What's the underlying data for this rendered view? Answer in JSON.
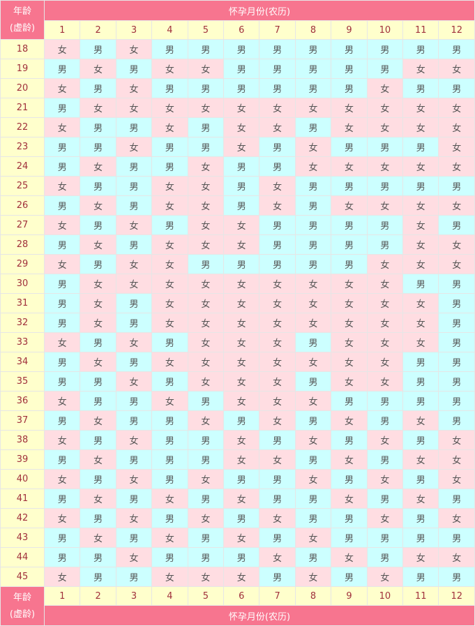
{
  "header": {
    "age_label": "年龄",
    "age_sub": "(虚龄)",
    "month_title": "怀孕月份(农历)",
    "months": [
      "1",
      "2",
      "3",
      "4",
      "5",
      "6",
      "7",
      "8",
      "9",
      "10",
      "11",
      "12"
    ]
  },
  "legend": {
    "boy": "男",
    "girl": "女"
  },
  "colors": {
    "header": "#f7758f",
    "label_bg": "#ffffcc",
    "boy_bg": "#ccffff",
    "girl_bg": "#ffdde2",
    "label_text": "#a0303c"
  },
  "rows": [
    {
      "age": "18",
      "cells": [
        "女",
        "男",
        "女",
        "男",
        "男",
        "男",
        "男",
        "男",
        "男",
        "男",
        "男",
        "男"
      ]
    },
    {
      "age": "19",
      "cells": [
        "男",
        "女",
        "男",
        "女",
        "女",
        "男",
        "男",
        "男",
        "男",
        "男",
        "女",
        "女"
      ]
    },
    {
      "age": "20",
      "cells": [
        "女",
        "男",
        "女",
        "男",
        "男",
        "男",
        "男",
        "男",
        "男",
        "女",
        "男",
        "男"
      ]
    },
    {
      "age": "21",
      "cells": [
        "男",
        "女",
        "女",
        "女",
        "女",
        "女",
        "女",
        "女",
        "女",
        "女",
        "女",
        "女"
      ]
    },
    {
      "age": "22",
      "cells": [
        "女",
        "男",
        "男",
        "女",
        "男",
        "女",
        "女",
        "男",
        "女",
        "女",
        "女",
        "女"
      ]
    },
    {
      "age": "23",
      "cells": [
        "男",
        "男",
        "女",
        "男",
        "男",
        "女",
        "男",
        "女",
        "男",
        "男",
        "男",
        "女"
      ]
    },
    {
      "age": "24",
      "cells": [
        "男",
        "女",
        "男",
        "男",
        "女",
        "男",
        "男",
        "女",
        "女",
        "女",
        "女",
        "女"
      ]
    },
    {
      "age": "25",
      "cells": [
        "女",
        "男",
        "男",
        "女",
        "女",
        "男",
        "女",
        "男",
        "男",
        "男",
        "男",
        "男"
      ]
    },
    {
      "age": "26",
      "cells": [
        "男",
        "女",
        "男",
        "女",
        "女",
        "男",
        "女",
        "男",
        "女",
        "女",
        "女",
        "女"
      ]
    },
    {
      "age": "27",
      "cells": [
        "女",
        "男",
        "女",
        "男",
        "女",
        "女",
        "男",
        "男",
        "男",
        "男",
        "女",
        "男"
      ]
    },
    {
      "age": "28",
      "cells": [
        "男",
        "女",
        "男",
        "女",
        "女",
        "女",
        "男",
        "男",
        "男",
        "男",
        "女",
        "女"
      ]
    },
    {
      "age": "29",
      "cells": [
        "女",
        "男",
        "女",
        "女",
        "男",
        "男",
        "男",
        "男",
        "男",
        "女",
        "女",
        "女"
      ]
    },
    {
      "age": "30",
      "cells": [
        "男",
        "女",
        "女",
        "女",
        "女",
        "女",
        "女",
        "女",
        "女",
        "女",
        "男",
        "男"
      ]
    },
    {
      "age": "31",
      "cells": [
        "男",
        "女",
        "男",
        "女",
        "女",
        "女",
        "女",
        "女",
        "女",
        "女",
        "女",
        "男"
      ]
    },
    {
      "age": "32",
      "cells": [
        "男",
        "女",
        "男",
        "女",
        "女",
        "女",
        "女",
        "女",
        "女",
        "女",
        "女",
        "男"
      ]
    },
    {
      "age": "33",
      "cells": [
        "女",
        "男",
        "女",
        "男",
        "女",
        "女",
        "女",
        "男",
        "女",
        "女",
        "女",
        "男"
      ]
    },
    {
      "age": "34",
      "cells": [
        "男",
        "女",
        "男",
        "女",
        "女",
        "女",
        "女",
        "女",
        "女",
        "女",
        "男",
        "男"
      ]
    },
    {
      "age": "35",
      "cells": [
        "男",
        "男",
        "女",
        "男",
        "女",
        "女",
        "女",
        "男",
        "女",
        "女",
        "男",
        "男"
      ]
    },
    {
      "age": "36",
      "cells": [
        "女",
        "男",
        "男",
        "女",
        "男",
        "女",
        "女",
        "女",
        "男",
        "男",
        "男",
        "男"
      ]
    },
    {
      "age": "37",
      "cells": [
        "男",
        "女",
        "男",
        "男",
        "女",
        "男",
        "女",
        "男",
        "女",
        "男",
        "女",
        "男"
      ]
    },
    {
      "age": "38",
      "cells": [
        "女",
        "男",
        "女",
        "男",
        "男",
        "女",
        "男",
        "女",
        "男",
        "女",
        "男",
        "女"
      ]
    },
    {
      "age": "39",
      "cells": [
        "男",
        "女",
        "男",
        "男",
        "男",
        "女",
        "女",
        "男",
        "女",
        "男",
        "女",
        "女"
      ]
    },
    {
      "age": "40",
      "cells": [
        "女",
        "男",
        "女",
        "男",
        "女",
        "男",
        "男",
        "女",
        "男",
        "女",
        "男",
        "女"
      ]
    },
    {
      "age": "41",
      "cells": [
        "男",
        "女",
        "男",
        "女",
        "男",
        "女",
        "男",
        "男",
        "女",
        "男",
        "女",
        "男"
      ]
    },
    {
      "age": "42",
      "cells": [
        "女",
        "男",
        "女",
        "男",
        "女",
        "男",
        "女",
        "男",
        "男",
        "女",
        "男",
        "女"
      ]
    },
    {
      "age": "43",
      "cells": [
        "男",
        "女",
        "男",
        "女",
        "男",
        "女",
        "男",
        "女",
        "男",
        "男",
        "男",
        "男"
      ]
    },
    {
      "age": "44",
      "cells": [
        "男",
        "男",
        "女",
        "男",
        "男",
        "男",
        "女",
        "男",
        "女",
        "男",
        "女",
        "女"
      ]
    },
    {
      "age": "45",
      "cells": [
        "女",
        "男",
        "男",
        "女",
        "女",
        "女",
        "男",
        "女",
        "男",
        "女",
        "男",
        "男"
      ]
    }
  ]
}
